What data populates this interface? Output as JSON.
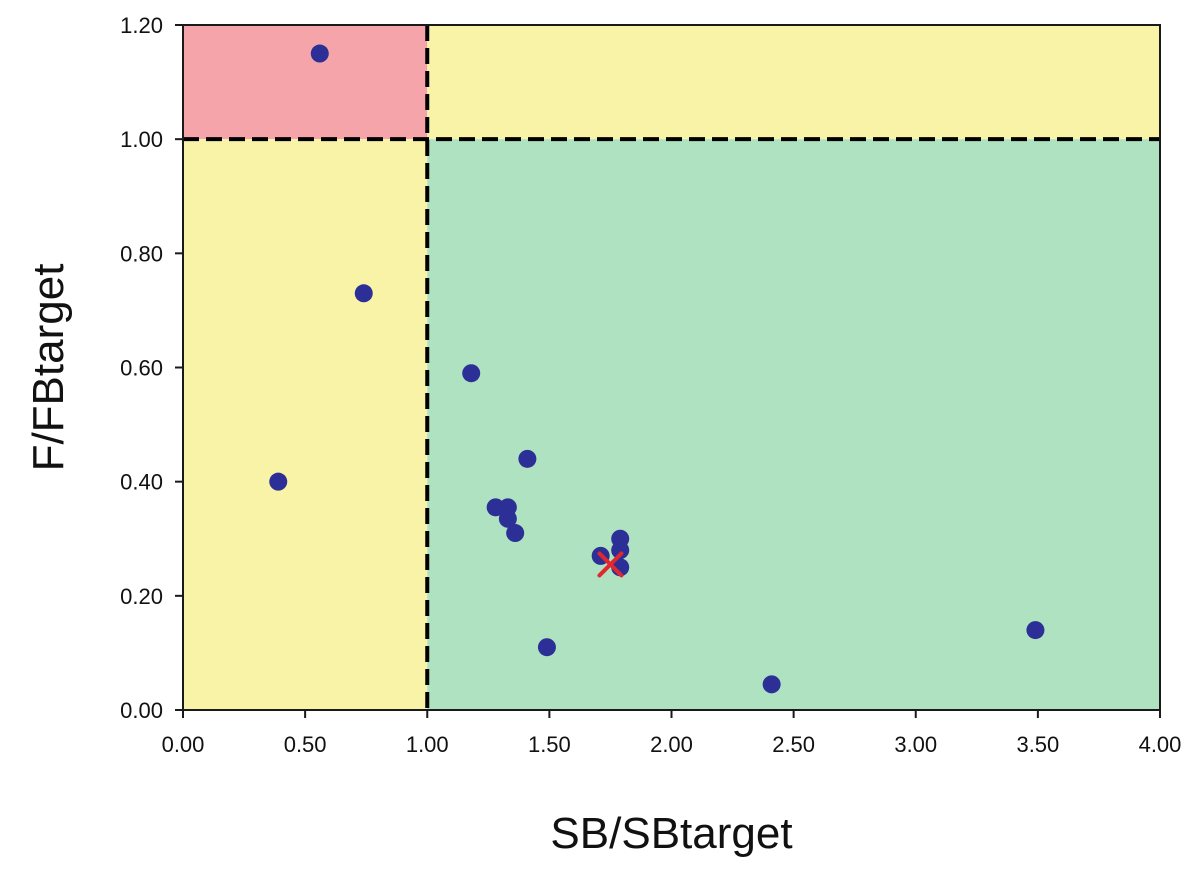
{
  "chart_data": {
    "type": "scatter",
    "title": "",
    "xlabel": "SB/SBtarget",
    "ylabel": "F/FBtarget",
    "xlim": [
      0,
      4
    ],
    "ylim": [
      0,
      1.2
    ],
    "xticks": [
      "0.00",
      "0.50",
      "1.00",
      "1.50",
      "2.00",
      "2.50",
      "3.00",
      "3.50",
      "4.00"
    ],
    "yticks": [
      "0.00",
      "0.20",
      "0.40",
      "0.60",
      "0.80",
      "1.00",
      "1.20"
    ],
    "grid": false,
    "reference_lines": {
      "x": 1.0,
      "y": 1.0,
      "style": "dashed"
    },
    "zones": [
      {
        "x": [
          0,
          1
        ],
        "y": [
          1,
          1.2
        ],
        "color": "#f5a5aa"
      },
      {
        "x": [
          1,
          4
        ],
        "y": [
          1,
          1.2
        ],
        "color": "#f8f3a6"
      },
      {
        "x": [
          0,
          1
        ],
        "y": [
          0,
          1
        ],
        "color": "#f8f3a6"
      },
      {
        "x": [
          1,
          4
        ],
        "y": [
          0,
          1
        ],
        "color": "#aee2c0"
      }
    ],
    "points": [
      {
        "x": 0.56,
        "y": 1.15
      },
      {
        "x": 0.74,
        "y": 0.73
      },
      {
        "x": 0.39,
        "y": 0.4
      },
      {
        "x": 1.18,
        "y": 0.59
      },
      {
        "x": 1.41,
        "y": 0.44
      },
      {
        "x": 1.28,
        "y": 0.355
      },
      {
        "x": 1.33,
        "y": 0.355
      },
      {
        "x": 1.33,
        "y": 0.335
      },
      {
        "x": 1.36,
        "y": 0.31
      },
      {
        "x": 1.71,
        "y": 0.27
      },
      {
        "x": 1.79,
        "y": 0.3
      },
      {
        "x": 1.79,
        "y": 0.28
      },
      {
        "x": 1.79,
        "y": 0.25
      },
      {
        "x": 1.49,
        "y": 0.11
      },
      {
        "x": 2.41,
        "y": 0.045
      },
      {
        "x": 3.49,
        "y": 0.14
      }
    ],
    "marker_color": "#2c2f96",
    "highlight": {
      "x": 1.75,
      "y": 0.255,
      "marker": "x",
      "color": "#e0282f"
    }
  }
}
